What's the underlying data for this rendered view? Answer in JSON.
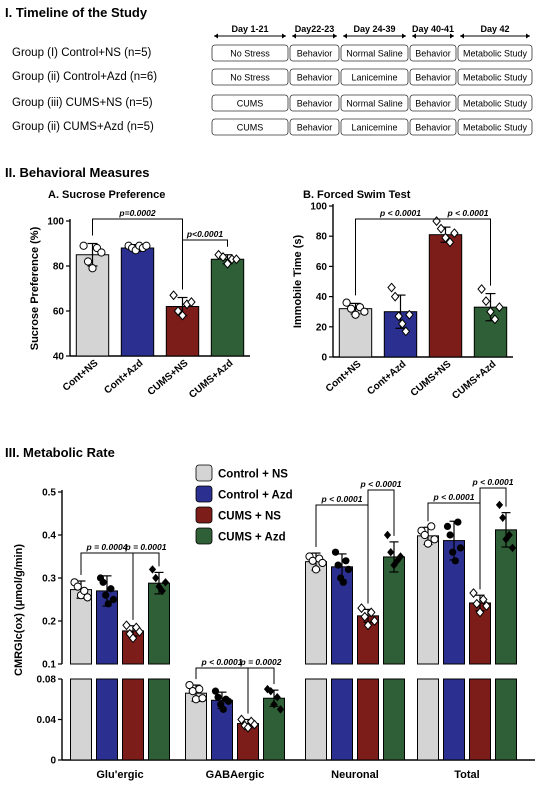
{
  "sections": {
    "timeline": "I. Timeline of the Study",
    "behavior": "II. Behavioral Measures",
    "metabolic": "III. Metabolic Rate"
  },
  "timeline": {
    "periods": [
      "Day 1-21",
      "Day22-23",
      "Day 24-39",
      "Day 40-41",
      "Day 42"
    ],
    "groups": [
      {
        "label": "Group (I) Control+NS (n=5)",
        "cells": [
          "No Stress",
          "Behavior",
          "Normal Saline",
          "Behavior",
          "Metabolic Study"
        ]
      },
      {
        "label": "Group (ii) Control+Azd (n=6)",
        "cells": [
          "No Stress",
          "Behavior",
          "Lanicemine",
          "Behavior",
          "Metabolic Study"
        ]
      },
      {
        "label": "Group (iii) CUMS+NS (n=5)",
        "cells": [
          "CUMS",
          "Behavior",
          "Normal Saline",
          "Behavior",
          "Metabolic Study"
        ]
      },
      {
        "label": "Group (ii) CUMS+Azd (n=5)",
        "cells": [
          "CUMS",
          "Behavior",
          "Lanicemine",
          "Behavior",
          "Metabolic Study"
        ]
      }
    ]
  },
  "colors": {
    "control_ns": "#d4d4d4",
    "control_azd": "#2b2f8f",
    "cums_ns": "#7c1d1a",
    "cums_azd": "#2f5f36"
  },
  "chart_data": [
    {
      "type": "bar",
      "title": "A. Sucrose Preference",
      "ylabel": "Sucrose Preference (%)",
      "categories": [
        "Cont+NS",
        "Cont+Azd",
        "CUMS+NS",
        "CUMS+Azd"
      ],
      "values": [
        85,
        88,
        62,
        83
      ],
      "errors": [
        5,
        1.5,
        4,
        2
      ],
      "points": [
        [
          89,
          82,
          79,
          88,
          86
        ],
        [
          89,
          88,
          87,
          89,
          88,
          89
        ],
        [
          67,
          60,
          58,
          63,
          64
        ],
        [
          85,
          84,
          81,
          83,
          83
        ]
      ],
      "ylim": [
        40,
        100
      ],
      "yticks": [
        40,
        60,
        80,
        100
      ],
      "annotations": [
        {
          "text": "p=0.0002",
          "from": 0,
          "to": 2
        },
        {
          "text": "p<0.0001",
          "from": 2,
          "to": 3
        }
      ]
    },
    {
      "type": "bar",
      "title": "B. Forced Swim Test",
      "ylabel": "Immobile Time (s)",
      "categories": [
        "Cont+NS",
        "Cont+Azd",
        "CUMS+NS",
        "CUMS+Azd"
      ],
      "values": [
        32,
        30,
        81,
        33
      ],
      "errors": [
        3.5,
        11,
        5,
        9
      ],
      "points": [
        [
          36,
          32,
          28,
          33,
          30
        ],
        [
          46,
          40,
          27,
          22,
          17,
          28
        ],
        [
          90,
          85,
          79,
          76,
          82
        ],
        [
          45,
          37,
          30,
          25,
          33
        ]
      ],
      "ylim": [
        0,
        100
      ],
      "yticks": [
        0,
        20,
        40,
        60,
        80,
        100
      ],
      "annotations": [
        {
          "text": "p < 0.0001",
          "from": 0,
          "to": 2
        },
        {
          "text": "p < 0.0001",
          "from": 2,
          "to": 3
        }
      ]
    },
    {
      "type": "bar",
      "ylabel": "CMRGlc(ox) (μmol/g/min)",
      "categories": [
        "Glu'ergic",
        "GABAergic",
        "Neuronal",
        "Total"
      ],
      "series": [
        {
          "name": "Control + NS",
          "values": [
            0.273,
            0.066,
            0.338,
            0.398
          ],
          "errors": [
            0.02,
            0.008,
            0.02,
            0.02
          ],
          "points": [
            [
              0.29,
              0.28,
              0.26,
              0.27,
              0.255
            ],
            [
              0.074,
              0.068,
              0.06,
              0.07,
              0.061
            ],
            [
              0.35,
              0.34,
              0.32,
              0.345,
              0.335
            ],
            [
              0.41,
              0.4,
              0.38,
              0.42,
              0.39
            ]
          ]
        },
        {
          "name": "Control + Azd",
          "values": [
            0.27,
            0.059,
            0.326,
            0.387
          ],
          "errors": [
            0.035,
            0.008,
            0.03,
            0.045
          ],
          "points": [
            [
              0.3,
              0.29,
              0.26,
              0.24,
              0.275,
              0.25
            ],
            [
              0.068,
              0.062,
              0.055,
              0.05,
              0.06,
              0.058
            ],
            [
              0.36,
              0.33,
              0.3,
              0.29,
              0.34,
              0.32
            ],
            [
              0.42,
              0.4,
              0.36,
              0.34,
              0.43,
              0.37
            ]
          ]
        },
        {
          "name": "CUMS + NS",
          "values": [
            0.177,
            0.036,
            0.212,
            0.242
          ],
          "errors": [
            0.012,
            0.004,
            0.015,
            0.018
          ],
          "points": [
            [
              0.19,
              0.17,
              0.16,
              0.185,
              0.175
            ],
            [
              0.04,
              0.034,
              0.032,
              0.038,
              0.035
            ],
            [
              0.23,
              0.21,
              0.19,
              0.22,
              0.2
            ],
            [
              0.265,
              0.24,
              0.22,
              0.25,
              0.235
            ]
          ]
        },
        {
          "name": "CUMS + Azd",
          "values": [
            0.288,
            0.061,
            0.349,
            0.412
          ],
          "errors": [
            0.025,
            0.008,
            0.035,
            0.04
          ],
          "points": [
            [
              0.32,
              0.3,
              0.28,
              0.27,
              0.29
            ],
            [
              0.07,
              0.068,
              0.055,
              0.062,
              0.05
            ],
            [
              0.4,
              0.36,
              0.33,
              0.34,
              0.35
            ],
            [
              0.47,
              0.44,
              0.39,
              0.4,
              0.37
            ]
          ]
        }
      ],
      "ylim": [
        0,
        0.5
      ],
      "axis_break": [
        0.08,
        0.1
      ],
      "yticks_lower": [
        0.0,
        0.04,
        0.08
      ],
      "yticks_upper": [
        0.1,
        0.2,
        0.3,
        0.4,
        0.5
      ],
      "annotations": [
        {
          "text": "p = 0.0004",
          "category": 0,
          "from": 0,
          "to": 2
        },
        {
          "text": "p = 0.0001",
          "category": 0,
          "from": 2,
          "to": 3
        },
        {
          "text": "p < 0.0001",
          "category": 1,
          "from": 0,
          "to": 2
        },
        {
          "text": "p = 0.0002",
          "category": 1,
          "from": 2,
          "to": 3
        },
        {
          "text": "p < 0.0001",
          "category": 2,
          "from": 0,
          "to": 2
        },
        {
          "text": "p < 0.0001",
          "category": 2,
          "from": 2,
          "to": 3
        },
        {
          "text": "p < 0.0001",
          "category": 3,
          "from": 0,
          "to": 2
        },
        {
          "text": "p < 0.0001",
          "category": 3,
          "from": 2,
          "to": 3
        }
      ]
    }
  ]
}
